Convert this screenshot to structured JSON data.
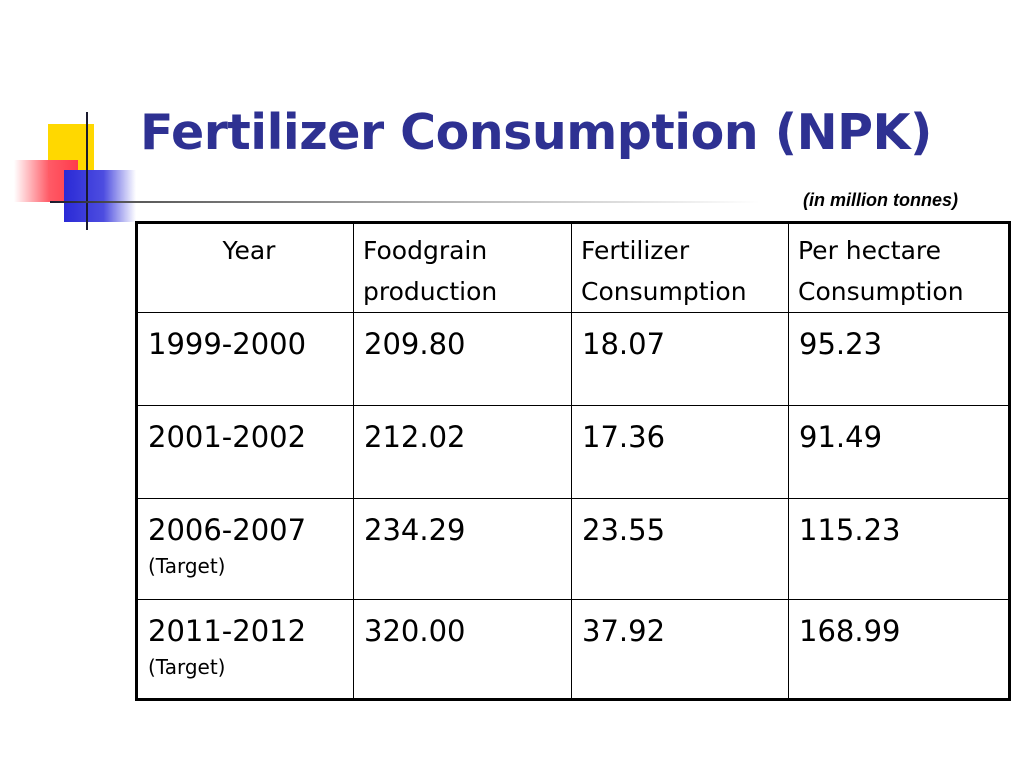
{
  "slide": {
    "title": "Fertilizer Consumption (NPK)",
    "units": "(in million tonnes)"
  },
  "table": {
    "headers": [
      "Year",
      "Foodgrain production",
      "Fertilizer Consumption",
      "Per hectare Consumption"
    ],
    "rows": [
      {
        "year": "1999-2000",
        "note": "",
        "foodgrain": "209.80",
        "fertilizer": "18.07",
        "per_hectare": "95.23"
      },
      {
        "year": "2001-2002",
        "note": "",
        "foodgrain": "212.02",
        "fertilizer": "17.36",
        "per_hectare": "91.49"
      },
      {
        "year": "2006-2007",
        "note": "(Target)",
        "foodgrain": "234.29",
        "fertilizer": "23.55",
        "per_hectare": "115.23"
      },
      {
        "year": "2011-2012",
        "note": "(Target)",
        "foodgrain": "320.00",
        "fertilizer": "37.92",
        "per_hectare": "168.99"
      }
    ]
  },
  "colors": {
    "title": "#2e3192",
    "logo_yellow": "#ffd800",
    "logo_red": "#ff3b4b",
    "logo_blue": "#2a2ad6"
  }
}
